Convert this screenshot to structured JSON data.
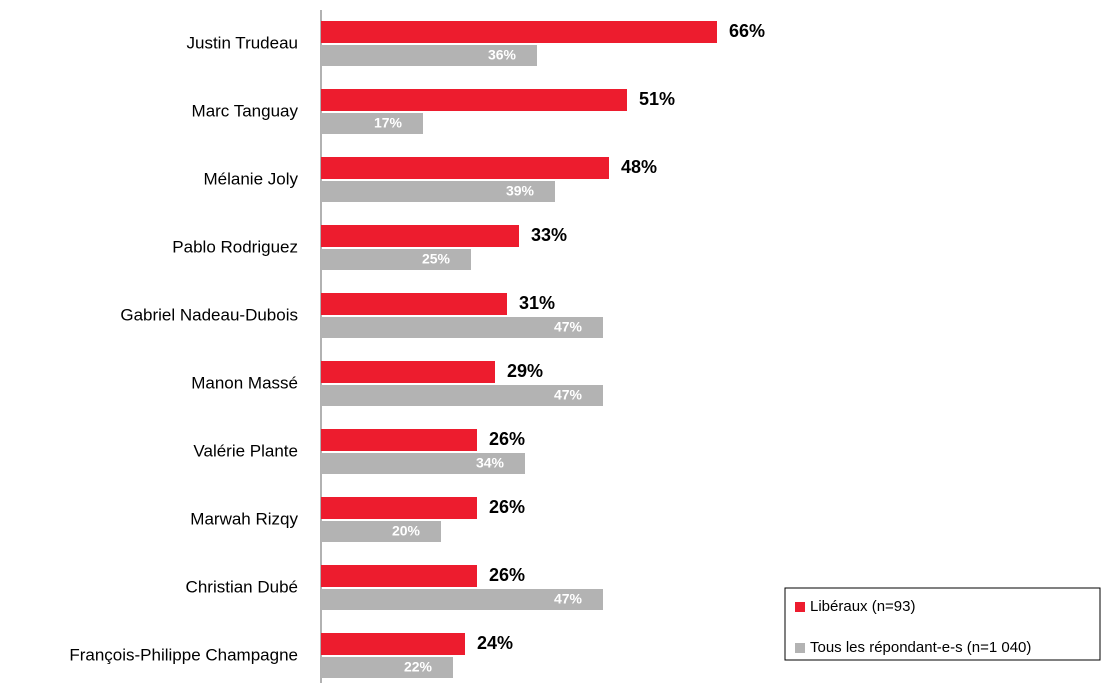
{
  "chart_data": {
    "type": "bar",
    "orientation": "horizontal",
    "categories": [
      "Justin Trudeau",
      "Marc Tanguay",
      "Mélanie Joly",
      "Pablo Rodriguez",
      "Gabriel Nadeau-Dubois",
      "Manon Massé",
      "Valérie Plante",
      "Marwah Rizqy",
      "Christian Dubé",
      "François-Philippe Champagne"
    ],
    "series": [
      {
        "name": "Libéraux (n=93)",
        "color": "#ed1c2e",
        "values": [
          66,
          51,
          48,
          33,
          31,
          29,
          26,
          26,
          26,
          24
        ],
        "value_labels": [
          "66%",
          "51%",
          "48%",
          "33%",
          "31%",
          "29%",
          "26%",
          "26%",
          "26%",
          "24%"
        ]
      },
      {
        "name": "Tous les répondant-e-s (n=1 040)",
        "color": "#b3b3b3",
        "values": [
          36,
          17,
          39,
          25,
          47,
          47,
          34,
          20,
          47,
          22
        ],
        "value_labels": [
          "36%",
          "17%",
          "39%",
          "25%",
          "47%",
          "47%",
          "34%",
          "20%",
          "47%",
          "22%"
        ]
      }
    ],
    "xlim": [
      0,
      100
    ],
    "legend": "lower right"
  }
}
